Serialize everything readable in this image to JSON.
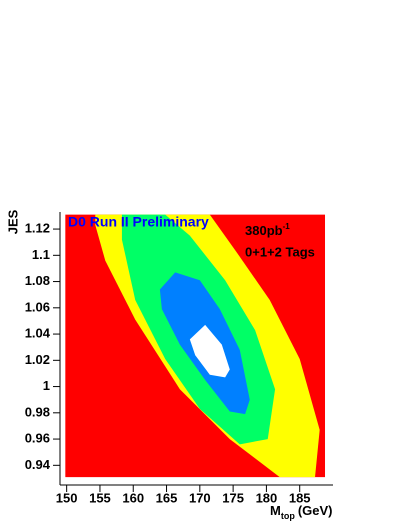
{
  "chart_data": {
    "type": "contour",
    "y_label": "JES",
    "x_label": {
      "main": "M",
      "sub": "top",
      "unit": "(GeV)"
    },
    "annotations": {
      "experiment": "D0 Run II Preliminary",
      "lumi": "380pb",
      "lumi_sup": "-1",
      "tags": "0+1+2 Tags"
    },
    "xlim": [
      149,
      190
    ],
    "ylim": [
      0.925,
      1.133
    ],
    "xticks": [
      150,
      155,
      160,
      165,
      170,
      175,
      180,
      185
    ],
    "yticks": [
      0.94,
      0.96,
      0.98,
      1,
      1.02,
      1.04,
      1.06,
      1.08,
      1.1,
      1.12
    ],
    "contours": [
      {
        "color": "#ff0000",
        "x": [
          149.8,
          188.8,
          188.8,
          149.8
        ],
        "y": [
          1.131,
          1.131,
          0.931,
          0.931
        ]
      },
      {
        "color": "#ffff00",
        "x": [
          154.3,
          171.5,
          175.3,
          180.5,
          185.0,
          188.0,
          187.3,
          182.0,
          174.5,
          167.0,
          160.3,
          155.8,
          154.3
        ],
        "y": [
          1.131,
          1.131,
          1.104,
          1.066,
          1.021,
          0.967,
          0.931,
          0.931,
          0.96,
          0.998,
          1.051,
          1.096,
          1.123
        ]
      },
      {
        "color": "#00ff66",
        "x": [
          158.3,
          164.8,
          168.5,
          173.8,
          178.3,
          181.3,
          180.2,
          176.0,
          170.0,
          164.8,
          160.3,
          158.3
        ],
        "y": [
          1.131,
          1.131,
          1.115,
          1.081,
          1.043,
          0.998,
          0.96,
          0.956,
          0.983,
          1.021,
          1.066,
          1.112
        ]
      },
      {
        "color": "#0080ff",
        "x": [
          164.0,
          166.3,
          170.0,
          173.0,
          176.0,
          177.5,
          176.8,
          174.5,
          170.8,
          167.0,
          164.3
        ],
        "y": [
          1.074,
          1.087,
          1.081,
          1.059,
          1.028,
          0.99,
          0.979,
          0.981,
          1.005,
          1.032,
          1.059
        ]
      },
      {
        "color": "#ffffff",
        "x": [
          168.5,
          170.8,
          173.3,
          174.5,
          173.8,
          171.5,
          169.3
        ],
        "y": [
          1.036,
          1.047,
          1.032,
          1.013,
          1.007,
          1.009,
          1.024
        ]
      }
    ]
  }
}
